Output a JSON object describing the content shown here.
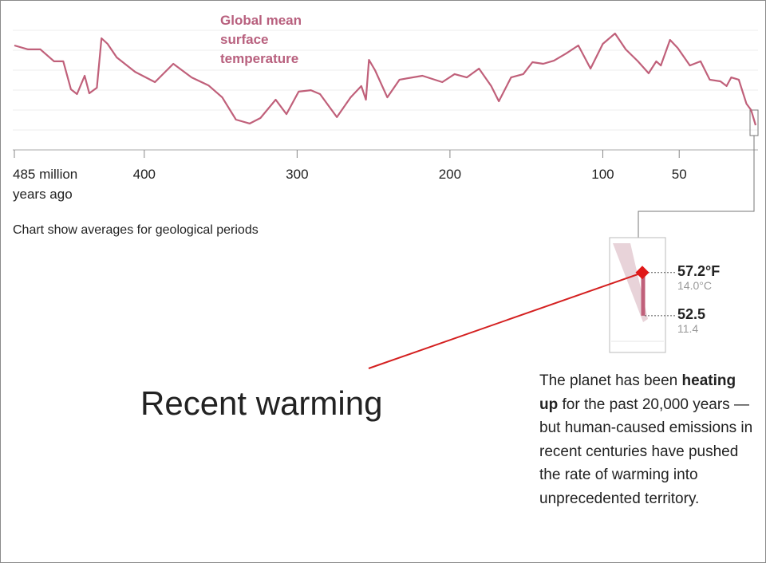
{
  "chart_data": {
    "type": "line",
    "title": "Global mean surface temperature",
    "note": "Chart show averages for geological periods",
    "headline": "Recent warming",
    "color": "#c0607a",
    "x": [
      485,
      476,
      468,
      459,
      453,
      448,
      444,
      439,
      436,
      431,
      428,
      424,
      418,
      406,
      393,
      381,
      369,
      358,
      349,
      340,
      331,
      324,
      314,
      307,
      299,
      291,
      285,
      274,
      265,
      258,
      255,
      253,
      249,
      241,
      233,
      218,
      205,
      197,
      189,
      181,
      173,
      168,
      160,
      152,
      146,
      139,
      132,
      124,
      116,
      108,
      100,
      92,
      85,
      77,
      70,
      65,
      62,
      56,
      51,
      43,
      36,
      30,
      23,
      19,
      16,
      11,
      6,
      3,
      0
    ],
    "series": [
      {
        "name": "Global mean surface temperature",
        "color": "#c0607a",
        "values": [
          90.7,
          88.8,
          88.8,
          83.0,
          83.0,
          69.4,
          67.1,
          76.0,
          67.5,
          70.2,
          94.2,
          91.5,
          84.9,
          77.9,
          72.9,
          81.8,
          75.2,
          71.3,
          65.5,
          54.7,
          52.8,
          55.5,
          64.4,
          57.4,
          68.3,
          69.0,
          67.1,
          55.9,
          65.5,
          71.0,
          64.4,
          83.7,
          78.7,
          65.5,
          74.1,
          76.0,
          72.9,
          76.8,
          75.2,
          79.5,
          71.0,
          63.6,
          75.2,
          76.8,
          82.6,
          81.8,
          83.3,
          86.8,
          90.7,
          79.5,
          91.5,
          96.5,
          88.8,
          83.0,
          77.2,
          83.0,
          81.0,
          93.4,
          89.5,
          81.0,
          83.0,
          74.1,
          73.3,
          71.0,
          75.2,
          74.1,
          62.4,
          59.4,
          52.0
        ]
      }
    ],
    "xlim": [
      485,
      0
    ],
    "ylim": [
      40,
      100
    ],
    "xticks": [
      {
        "value": 485,
        "label": "485 million years ago"
      },
      400,
      300,
      200,
      100,
      50
    ],
    "inset": {
      "ylim": [
        48.5,
        61
      ],
      "values": [
        57.2,
        52.5
      ],
      "value_labels": [
        "57.2°F",
        "52.5"
      ],
      "celsius_labels": [
        "14.0°C",
        "11.4"
      ]
    },
    "paragraph": [
      "The planet has been ",
      "heating up",
      " for the past 20,000 years — but human-caused emissions in recent centuries have pushed the rate of warming into unprecedented territory."
    ]
  }
}
